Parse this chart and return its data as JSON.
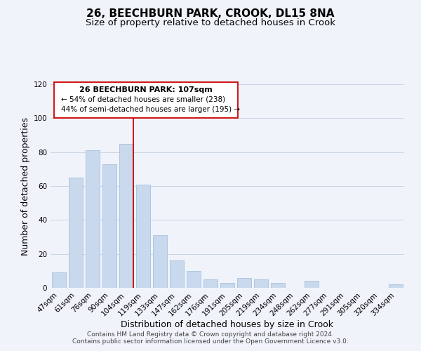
{
  "title": "26, BEECHBURN PARK, CROOK, DL15 8NA",
  "subtitle": "Size of property relative to detached houses in Crook",
  "xlabel": "Distribution of detached houses by size in Crook",
  "ylabel": "Number of detached properties",
  "categories": [
    "47sqm",
    "61sqm",
    "76sqm",
    "90sqm",
    "104sqm",
    "119sqm",
    "133sqm",
    "147sqm",
    "162sqm",
    "176sqm",
    "191sqm",
    "205sqm",
    "219sqm",
    "234sqm",
    "248sqm",
    "262sqm",
    "277sqm",
    "291sqm",
    "305sqm",
    "320sqm",
    "334sqm"
  ],
  "values": [
    9,
    65,
    81,
    73,
    85,
    61,
    31,
    16,
    10,
    5,
    3,
    6,
    5,
    3,
    0,
    4,
    0,
    0,
    0,
    0,
    2
  ],
  "bar_color": "#c8d9ed",
  "bar_edge_color": "#a8c0dc",
  "highlight_index": 4,
  "highlight_line_color": "#cc0000",
  "ylim": [
    0,
    120
  ],
  "yticks": [
    0,
    20,
    40,
    60,
    80,
    100,
    120
  ],
  "annotation_text_line1": "26 BEECHBURN PARK: 107sqm",
  "annotation_text_line2": "← 54% of detached houses are smaller (238)",
  "annotation_text_line3": "44% of semi-detached houses are larger (195) →",
  "footer_line1": "Contains HM Land Registry data © Crown copyright and database right 2024.",
  "footer_line2": "Contains public sector information licensed under the Open Government Licence v3.0.",
  "background_color": "#f0f4fa",
  "grid_color": "#c8d4e4",
  "title_fontsize": 11,
  "subtitle_fontsize": 9.5,
  "axis_label_fontsize": 9,
  "tick_fontsize": 7.5,
  "footer_fontsize": 6.5,
  "ann_fontsize_bold": 8,
  "ann_fontsize": 7.5
}
